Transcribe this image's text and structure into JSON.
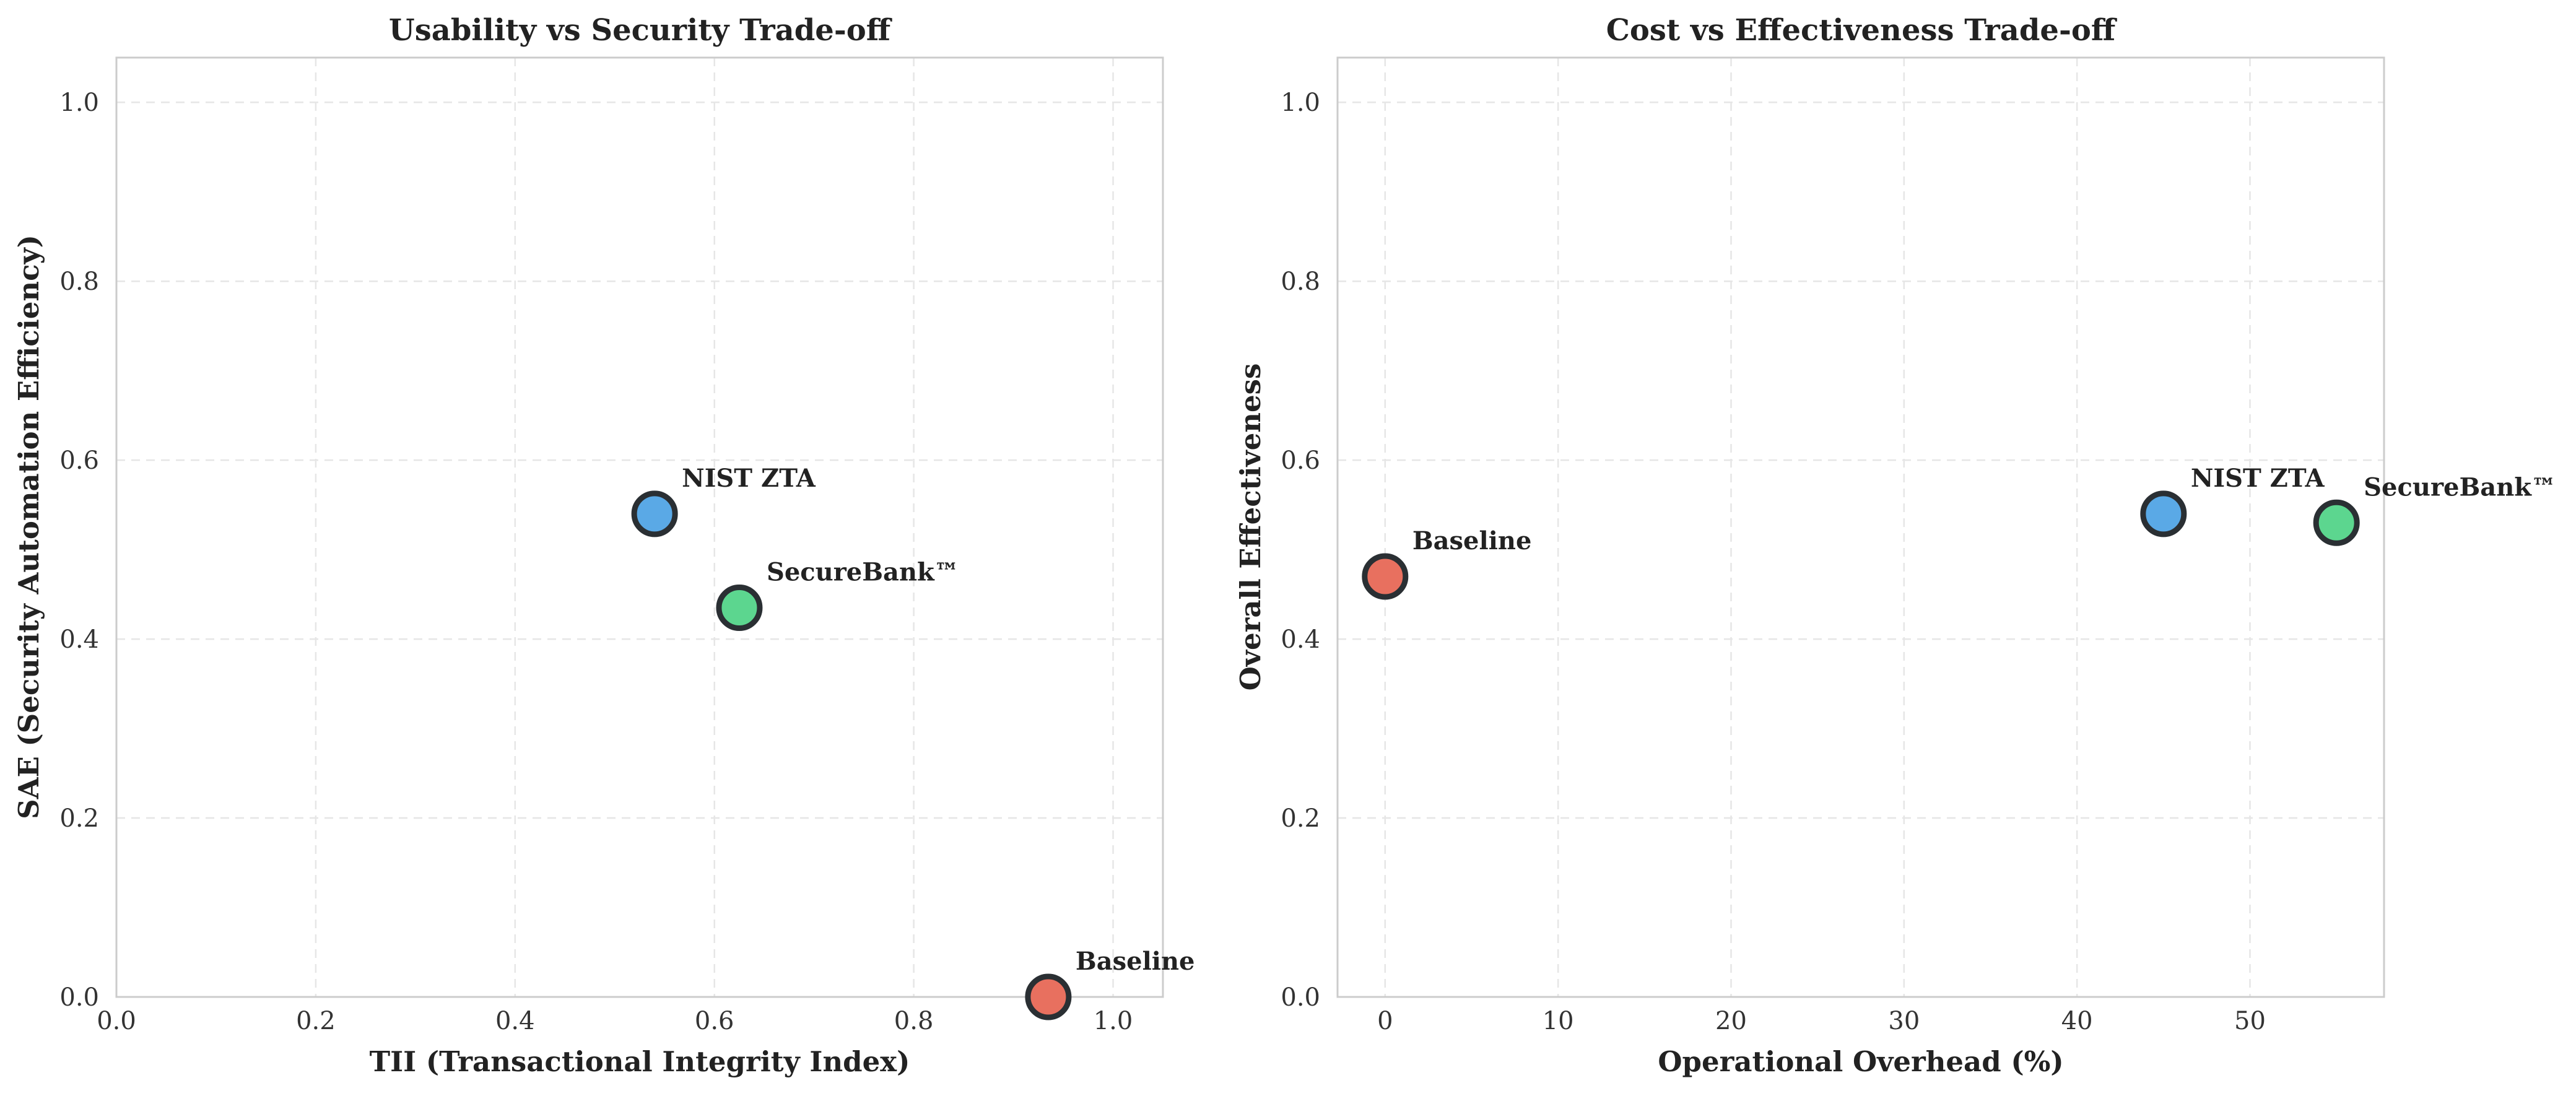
{
  "chart_data": [
    {
      "type": "scatter",
      "title": "Usability vs Security Trade-off",
      "xlabel": "TII (Transactional Integrity Index)",
      "ylabel": "SAE (Security Automation Efficiency)",
      "xlim": [
        0,
        1.05
      ],
      "ylim": [
        0,
        1.05
      ],
      "xticks": [
        0.0,
        0.2,
        0.4,
        0.6,
        0.8,
        1.0
      ],
      "yticks": [
        0.0,
        0.2,
        0.4,
        0.6,
        0.8,
        1.0
      ],
      "tick_decimals": 1,
      "grid": true,
      "points": [
        {
          "name": "Baseline",
          "x": 0.935,
          "y": 0.0,
          "color": "#e8705f"
        },
        {
          "name": "NIST ZTA",
          "x": 0.54,
          "y": 0.54,
          "color": "#5aa9e6"
        },
        {
          "name": "SecureBank™",
          "x": 0.625,
          "y": 0.435,
          "color": "#5cd68f"
        }
      ]
    },
    {
      "type": "scatter",
      "title": "Cost vs Effectiveness Trade-off",
      "xlabel": "Operational Overhead (%)",
      "ylabel": "Overall Effectiveness",
      "xlim": [
        -2.75,
        57.75
      ],
      "ylim": [
        0,
        1.05
      ],
      "xticks": [
        0,
        10,
        20,
        30,
        40,
        50
      ],
      "yticks": [
        0.0,
        0.2,
        0.4,
        0.6,
        0.8,
        1.0
      ],
      "tick_decimals_x": 0,
      "tick_decimals": 1,
      "grid": true,
      "points": [
        {
          "name": "Baseline",
          "x": 0,
          "y": 0.47,
          "color": "#e8705f"
        },
        {
          "name": "NIST ZTA",
          "x": 45,
          "y": 0.54,
          "color": "#5aa9e6"
        },
        {
          "name": "SecureBank™",
          "x": 55,
          "y": 0.53,
          "color": "#5cd68f"
        }
      ]
    }
  ]
}
